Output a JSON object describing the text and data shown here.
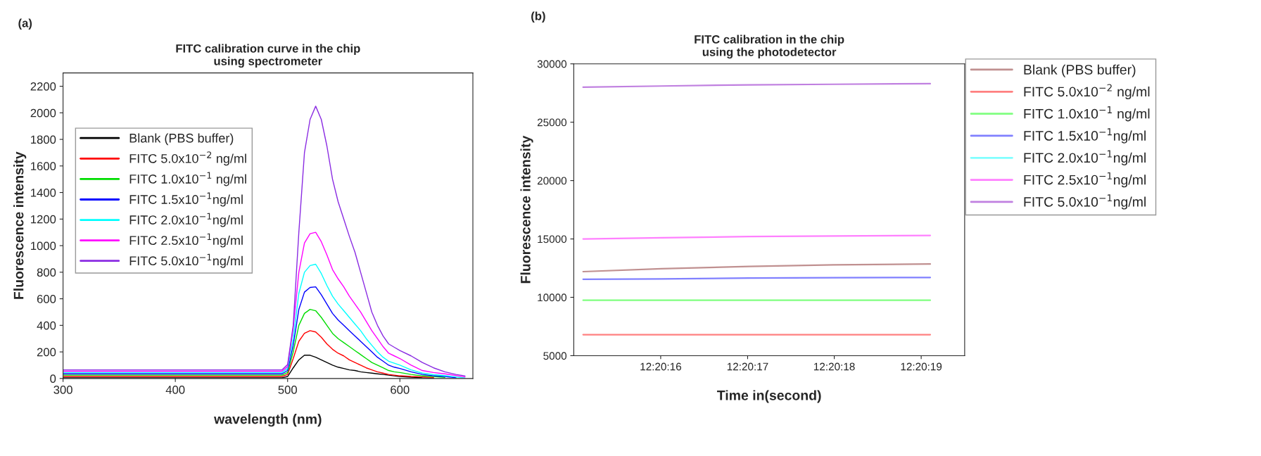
{
  "chart_data": [
    {
      "type": "line",
      "title": "FITC calibration curve in the chip\nusing spectrometer",
      "xlabel": "wavelength (nm)",
      "ylabel": "Fluorescence intensity",
      "annotations": [
        "(a)"
      ],
      "legend": "top left",
      "x": [
        300,
        320,
        340,
        360,
        380,
        400,
        420,
        440,
        460,
        480,
        495,
        500,
        505,
        510,
        515,
        520,
        525,
        530,
        535,
        540,
        545,
        550,
        555,
        560,
        565,
        570,
        575,
        580,
        585,
        590,
        595,
        600,
        610,
        620,
        630,
        640,
        650,
        658
      ],
      "xlim": [
        300,
        665
      ],
      "ylim": [
        0,
        2300
      ],
      "xticks": [
        300,
        400,
        500,
        600
      ],
      "yticks": [
        0,
        200,
        400,
        600,
        800,
        1000,
        1200,
        1400,
        1600,
        1800,
        2000,
        2200
      ],
      "series": [
        {
          "name": "Blank (PBS buffer)",
          "color": "#000000",
          "values": [
            5,
            5,
            5,
            5,
            5,
            5,
            5,
            5,
            5,
            5,
            5,
            15,
            80,
            140,
            175,
            175,
            160,
            140,
            120,
            100,
            85,
            75,
            65,
            60,
            50,
            45,
            40,
            35,
            30,
            25,
            20,
            15,
            10,
            5,
            2,
            null,
            null,
            null
          ]
        },
        {
          "name": "FITC 5.0x10$^{−2}$ ng/ml",
          "color": "#ff0000",
          "values": [
            15,
            15,
            15,
            15,
            15,
            15,
            15,
            15,
            15,
            15,
            15,
            30,
            150,
            280,
            340,
            360,
            350,
            310,
            260,
            220,
            190,
            170,
            140,
            120,
            100,
            80,
            65,
            50,
            40,
            30,
            25,
            20,
            15,
            12,
            8,
            null,
            null,
            null
          ]
        },
        {
          "name": "FITC 1.0x10$^{−1}$ ng/ml",
          "color": "#00dd00",
          "values": [
            25,
            25,
            25,
            25,
            25,
            25,
            25,
            25,
            25,
            25,
            25,
            45,
            200,
            400,
            490,
            520,
            510,
            460,
            400,
            340,
            300,
            270,
            240,
            210,
            180,
            150,
            120,
            100,
            80,
            60,
            50,
            45,
            30,
            20,
            15,
            8,
            null,
            null
          ]
        },
        {
          "name": "FITC 1.5x10$^{−1}$ng/ml",
          "color": "#0000ff",
          "values": [
            35,
            35,
            35,
            35,
            35,
            35,
            35,
            35,
            35,
            35,
            35,
            60,
            250,
            520,
            650,
            685,
            690,
            630,
            560,
            490,
            440,
            400,
            360,
            320,
            280,
            240,
            200,
            160,
            130,
            100,
            85,
            75,
            50,
            30,
            20,
            15,
            5,
            null
          ]
        },
        {
          "name": "FITC 2.0x10$^{−1}$ng/ml",
          "color": "#00ffff",
          "values": [
            45,
            45,
            45,
            45,
            45,
            45,
            45,
            45,
            45,
            45,
            45,
            75,
            300,
            640,
            800,
            850,
            860,
            790,
            700,
            620,
            560,
            510,
            460,
            410,
            360,
            300,
            250,
            200,
            160,
            130,
            115,
            100,
            65,
            40,
            28,
            22,
            12,
            3
          ]
        },
        {
          "name": "FITC 2.5x10$^{−1}$ng/ml",
          "color": "#ff00ff",
          "values": [
            55,
            55,
            55,
            55,
            55,
            55,
            55,
            55,
            55,
            55,
            55,
            90,
            380,
            800,
            1020,
            1090,
            1100,
            1030,
            930,
            820,
            750,
            690,
            620,
            560,
            500,
            430,
            360,
            300,
            240,
            190,
            170,
            150,
            100,
            60,
            45,
            35,
            22,
            12
          ]
        },
        {
          "name": "FITC 5.0x10$^{−1}$ng/ml",
          "color": "#8a2be2",
          "values": [
            65,
            65,
            65,
            65,
            65,
            65,
            65,
            65,
            65,
            65,
            65,
            105,
            400,
            1100,
            1700,
            1950,
            2050,
            1950,
            1750,
            1500,
            1330,
            1200,
            1070,
            950,
            800,
            650,
            500,
            400,
            320,
            260,
            235,
            210,
            170,
            120,
            80,
            50,
            30,
            20
          ]
        }
      ]
    },
    {
      "type": "line",
      "title": "FITC calibration in the chip\nusing the photodetector",
      "xlabel": "Time in(second)",
      "ylabel": "Fluorescence intensity",
      "annotations": [
        "(b)"
      ],
      "legend": "top right",
      "x": [
        12.33753,
        12.33778,
        12.33806,
        12.33833,
        12.33864
      ],
      "xlim": [
        12.3375,
        12.33875
      ],
      "ylim": [
        5000,
        30000
      ],
      "xticks": [
        {
          "value": 12.337778,
          "label": "12:20:16"
        },
        {
          "value": 12.338056,
          "label": "12:20:17"
        },
        {
          "value": 12.338333,
          "label": "12:20:18"
        },
        {
          "value": 12.338611,
          "label": "12:20:19"
        }
      ],
      "yticks": [
        5000,
        10000,
        15000,
        20000,
        25000,
        30000
      ],
      "series": [
        {
          "name": "Blank (PBS buffer)",
          "color": "#c09090",
          "values": [
            12200,
            12450,
            12650,
            12780,
            12850
          ]
        },
        {
          "name": "FITC 5.0x10$^{−2}$ ng/ml",
          "color": "#ff8080",
          "values": [
            6800,
            6800,
            6800,
            6800,
            6800
          ]
        },
        {
          "name": "FITC 1.0x10$^{−1}$ ng/ml",
          "color": "#80ff80",
          "values": [
            9750,
            9750,
            9750,
            9750,
            9750
          ]
        },
        {
          "name": "FITC 1.5x10$^{−1}$ng/ml",
          "color": "#8080ff",
          "values": [
            11550,
            11580,
            11650,
            11680,
            11700
          ]
        },
        {
          "name": "FITC 2.0x10$^{−1}$ng/ml",
          "color": "#80ffff",
          "values": [
            null,
            null,
            null,
            null,
            null
          ]
        },
        {
          "name": "FITC 2.5x10$^{−1}$ng/ml",
          "color": "#ff80ff",
          "values": [
            15000,
            15100,
            15200,
            15250,
            15300
          ]
        },
        {
          "name": "FITC 5.0x10$^{−1}$ng/ml",
          "color": "#c080e0",
          "values": [
            28000,
            28100,
            28200,
            28250,
            28300
          ]
        }
      ]
    }
  ]
}
